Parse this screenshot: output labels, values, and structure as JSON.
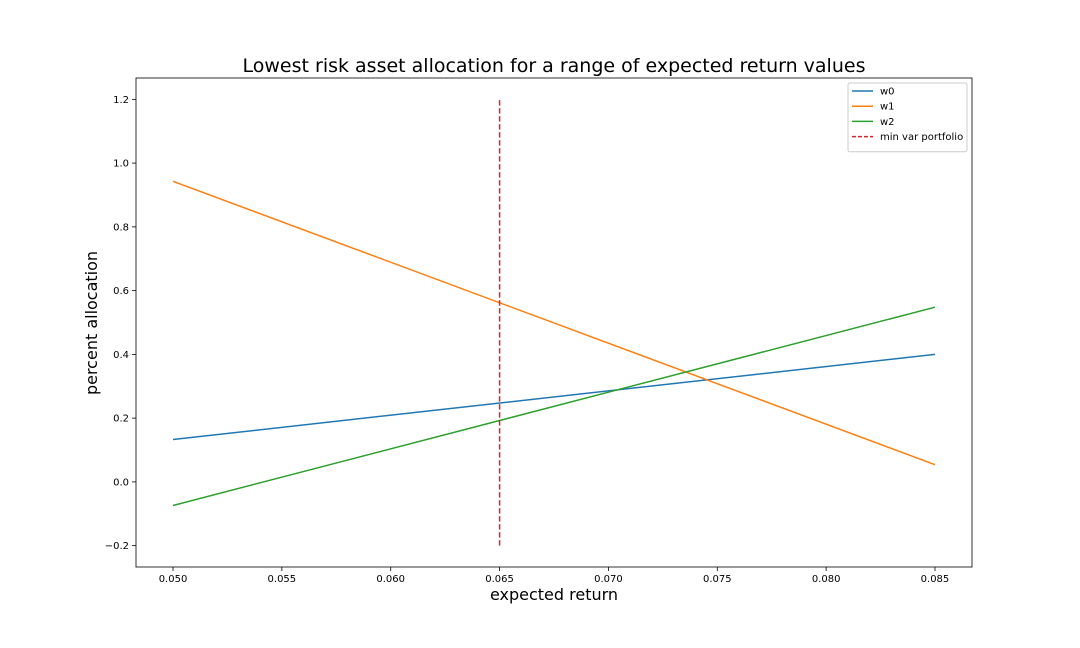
{
  "chart_data": {
    "type": "line",
    "title": "Lowest risk asset allocation for a range of expected return values",
    "xlabel": "expected return",
    "ylabel": "percent allocation",
    "xlim": [
      0.0483,
      0.0867
    ],
    "ylim": [
      -0.267,
      1.267
    ],
    "x_ticks": [
      "0.050",
      "0.055",
      "0.060",
      "0.065",
      "0.070",
      "0.075",
      "0.080",
      "0.085"
    ],
    "y_ticks": [
      "−0.2",
      "0.0",
      "0.2",
      "0.4",
      "0.6",
      "0.8",
      "1.0",
      "1.2"
    ],
    "grid": false,
    "legend_position": "top-right",
    "series": [
      {
        "name": "w0",
        "color": "#1f77b4",
        "style": "solid",
        "x": [
          0.05,
          0.085
        ],
        "y": [
          0.133,
          0.4
        ]
      },
      {
        "name": "w1",
        "color": "#ff7f0e",
        "style": "solid",
        "x": [
          0.05,
          0.085
        ],
        "y": [
          0.943,
          0.054
        ]
      },
      {
        "name": "w2",
        "color": "#2ca02c",
        "style": "solid",
        "x": [
          0.05,
          0.085
        ],
        "y": [
          -0.074,
          0.548
        ]
      },
      {
        "name": "min var portfolio",
        "color": "#d62728",
        "style": "dashed",
        "x": [
          0.065,
          0.065
        ],
        "y": [
          -0.2,
          1.2
        ]
      }
    ]
  }
}
